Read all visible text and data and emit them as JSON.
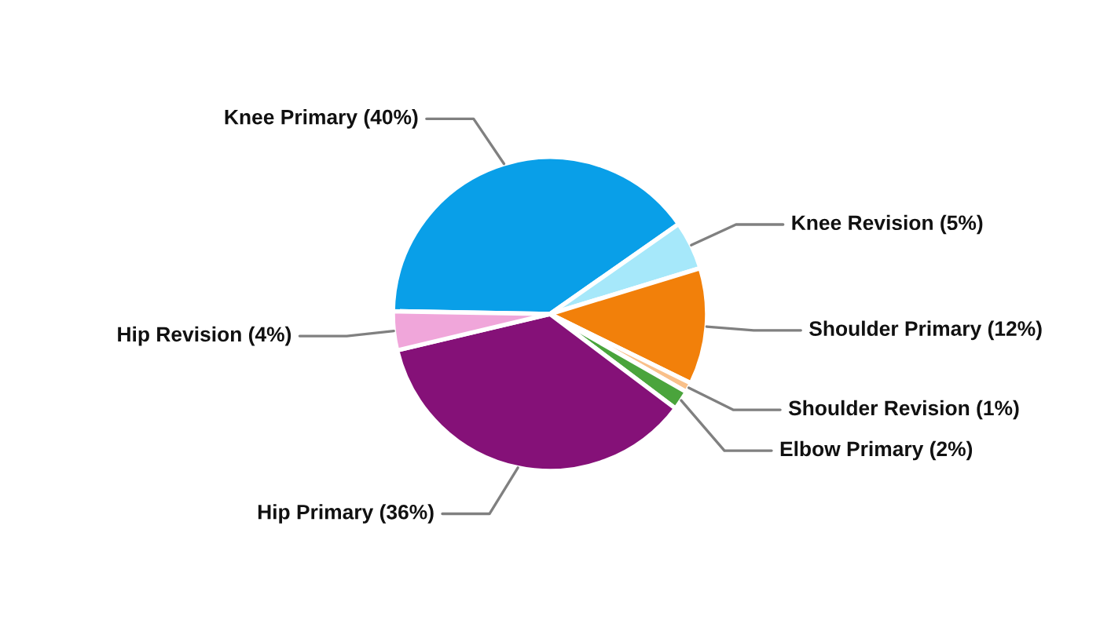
{
  "chart_data": {
    "type": "pie",
    "categories": [
      "Knee Primary",
      "Knee Revision",
      "Shoulder Primary",
      "Shoulder Revision",
      "Elbow Primary",
      "Hip Primary",
      "Hip Revision"
    ],
    "values": [
      40,
      5,
      12,
      1,
      2,
      36,
      4
    ],
    "value_labels": [
      "(40%)",
      "(5%)",
      "(12%)",
      "(1%)",
      "(2%)",
      "(36%)",
      "(4%)"
    ],
    "colors": [
      "#099fe8",
      "#a6e8fa",
      "#f2800a",
      "#f9c08a",
      "#4aa43c",
      "#851178",
      "#f0a6da"
    ]
  }
}
